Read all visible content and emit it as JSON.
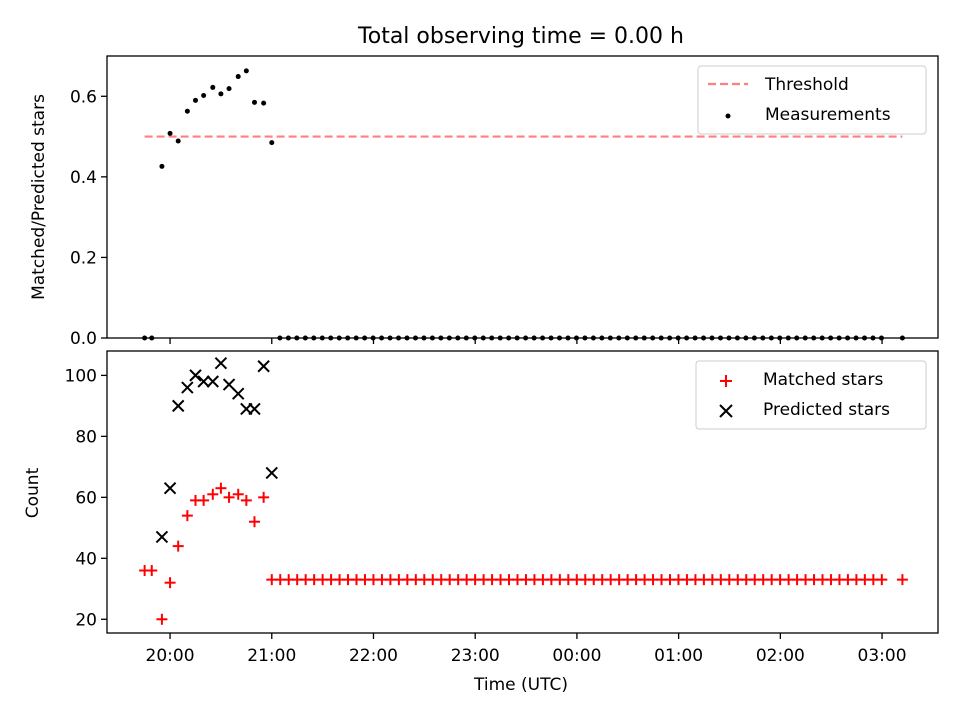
{
  "chart_data": [
    {
      "type": "scatter",
      "title": "Total observing time = 0.00 h",
      "ylabel": "Matched/Predicted stars",
      "xlabel": "",
      "xlim_hours": [
        19.38,
        27.55
      ],
      "ylim": [
        0,
        0.7
      ],
      "yticks": [
        0.0,
        0.2,
        0.4,
        0.6
      ],
      "ytick_labels": [
        "0.0",
        "0.2",
        "0.4",
        "0.6"
      ],
      "grid": false,
      "legend": "top-right",
      "threshold": {
        "name": "Threshold",
        "value": 0.5,
        "x_range_hours": [
          19.75,
          27.2
        ],
        "color": "#ff7f7f",
        "style": "dashed"
      },
      "series": [
        {
          "name": "Measurements",
          "color": "#000000",
          "marker": "dot",
          "x_hours": [
            19.75,
            19.82,
            19.92,
            20.0,
            20.08,
            20.17,
            20.25,
            20.33,
            20.42,
            20.5,
            20.58,
            20.67,
            20.75,
            20.83,
            20.92,
            21.0
          ],
          "values": [
            0.0,
            0.0,
            0.426,
            0.508,
            0.489,
            0.563,
            0.59,
            0.602,
            0.622,
            0.606,
            0.619,
            0.649,
            0.663,
            0.585,
            0.583,
            0.485
          ],
          "zeros_from_hours": 21.08,
          "zeros_to_hours": 27.0,
          "zeros_step_hours": 0.0833,
          "extra_zero_hours": [
            27.2
          ]
        }
      ]
    },
    {
      "type": "scatter",
      "title": "",
      "xlabel": "Time (UTC)",
      "ylabel": "Count",
      "xlim_hours": [
        19.38,
        27.55
      ],
      "ylim": [
        15.5,
        108
      ],
      "yticks": [
        20,
        40,
        60,
        80,
        100
      ],
      "ytick_labels": [
        "20",
        "40",
        "60",
        "80",
        "100"
      ],
      "xticks_hours": [
        20,
        21,
        22,
        23,
        24,
        25,
        26,
        27
      ],
      "xtick_labels": [
        "20:00",
        "21:00",
        "22:00",
        "23:00",
        "00:00",
        "01:00",
        "02:00",
        "03:00"
      ],
      "grid": false,
      "legend": "top-right",
      "series": [
        {
          "name": "Matched stars",
          "color": "#ff0000",
          "marker": "plus",
          "x_hours": [
            19.75,
            19.82,
            19.92,
            20.0,
            20.08,
            20.17,
            20.25,
            20.33,
            20.42,
            20.5,
            20.58,
            20.67,
            20.75,
            20.83,
            20.92
          ],
          "values": [
            36,
            36,
            20,
            32,
            44,
            54,
            59,
            59,
            61,
            63,
            60,
            61,
            59,
            52,
            60
          ],
          "constant_value": 33,
          "constant_from_hours": 21.0,
          "constant_to_hours": 27.0,
          "constant_step_hours": 0.0833,
          "extra_constant_hours": [
            27.2
          ]
        },
        {
          "name": "Predicted stars",
          "color": "#000000",
          "marker": "x",
          "x_hours": [
            19.92,
            20.0,
            20.08,
            20.17,
            20.25,
            20.33,
            20.42,
            20.5,
            20.58,
            20.67,
            20.75,
            20.83,
            20.92,
            21.0
          ],
          "values": [
            47,
            63,
            90,
            96,
            100,
            98,
            98,
            104,
            97,
            94,
            89,
            89,
            103,
            68
          ]
        }
      ]
    }
  ]
}
